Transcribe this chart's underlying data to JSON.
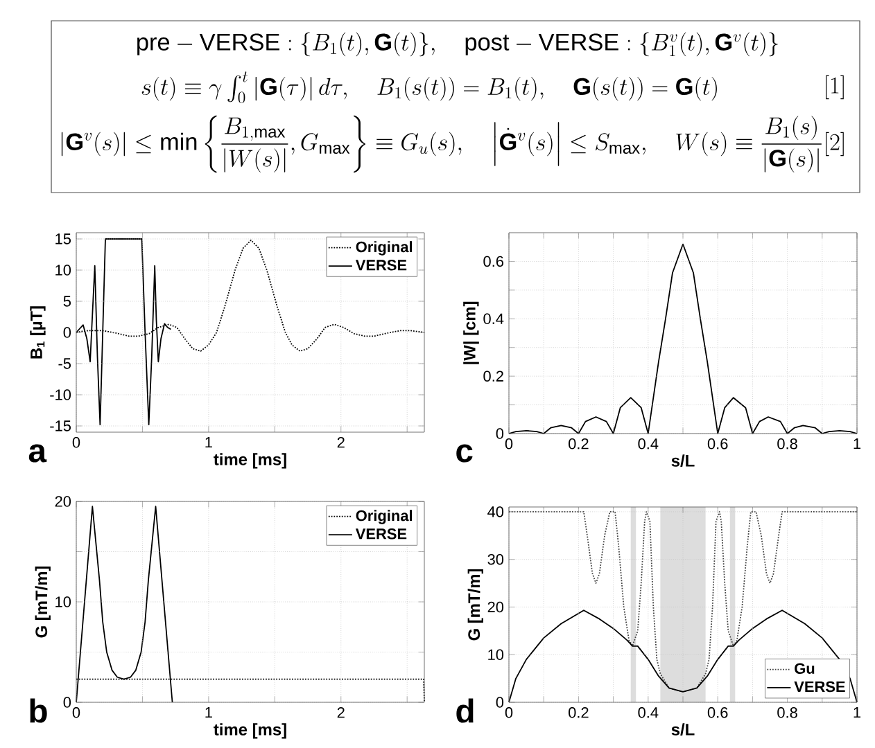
{
  "chart_data": [
    {
      "type": "other",
      "annotations": [
        "\\mathrm{pre-VERSE}:\\{B_1(t),\\mathbf{G}(t)\\},\\quad \\mathrm{post-VERSE}:\\{B_1^v(t),\\mathbf{G}^v(t)\\}",
        "s(t)\\equiv\\gamma\\int_0^t\\left|\\mathbf{G}(\\tau)\\right|d\\tau,\\quad B_1(s(t))=B_1(t),\\quad \\mathbf{G}(s(t))=\\mathbf{G}(t)",
        "\\left|\\mathbf{G}^v(s)\\right|\\le\\min\\left\\{\\frac{B_{1,\\max}}{\\left|W(s)\\right|},G_{\\max}\\right\\}\\equiv G_u(s),\\quad \\left|\\dot{\\mathbf{G}}^v(s)\\right|\\le S_{\\max},\\quad W(s)\\equiv\\frac{B_1(s)}{\\left|\\mathbf{G}(s)\\right|}",
        "[1]",
        "[2]"
      ]
    },
    {
      "type": "line",
      "xlabel": "time [ms]",
      "ylabel": "B$_{1}$ [µT]",
      "xlim": [
        0,
        2.63
      ],
      "ylim": [
        -16,
        16
      ],
      "xticks": [
        0,
        {
          "value": 0.5,
          "label": null
        },
        1,
        {
          "value": 1.5,
          "label": null
        },
        2,
        {
          "value": 2.5,
          "label": null
        }
      ],
      "yticks": [
        -15,
        -10,
        -5,
        0,
        5,
        10,
        15
      ],
      "grid": true,
      "legend": "top right",
      "annotations": [
        "a"
      ],
      "series": [
        {
          "name": "Original",
          "color": "#000000",
          "line_style": "dotted",
          "x": [
            0,
            0.05,
            0.1,
            0.2,
            0.3,
            0.4,
            0.47,
            0.55,
            0.62,
            0.7,
            0.76,
            0.82,
            0.88,
            0.94,
            1.0,
            1.06,
            1.12,
            1.2,
            1.26,
            1.32,
            1.38,
            1.44,
            1.52,
            1.58,
            1.63,
            1.69,
            1.75,
            1.82,
            1.88,
            1.95,
            2.02,
            2.1,
            2.18,
            2.25,
            2.35,
            2.45,
            2.52,
            2.6,
            2.63
          ],
          "values": [
            0,
            0.2,
            0.3,
            0.3,
            -0.1,
            -0.6,
            -0.6,
            -0.2,
            0.8,
            1.3,
            0.8,
            -1,
            -2.6,
            -3,
            -2,
            0,
            4,
            10,
            13.5,
            14.8,
            13.5,
            10,
            4,
            0,
            -2,
            -3,
            -2.6,
            -1,
            0.8,
            1.3,
            0.8,
            -0.2,
            -0.6,
            -0.6,
            -0.1,
            0.3,
            0.3,
            0.1,
            0
          ]
        },
        {
          "name": "VERSE",
          "color": "#000000",
          "line_style": "solid",
          "x": [
            0,
            0.052,
            0.08,
            0.105,
            0.12,
            0.14,
            0.16,
            0.18,
            0.2,
            0.22,
            0.495,
            0.52,
            0.548,
            0.57,
            0.593,
            0.605,
            0.62,
            0.64,
            0.667,
            0.69,
            0.715
          ],
          "values": [
            0,
            1.2,
            -1,
            -4.7,
            2,
            10.7,
            -4,
            -14.8,
            0,
            15,
            15,
            0,
            -14.8,
            -4,
            10.7,
            2,
            -4.7,
            -1,
            1.4,
            0.8,
            0.5
          ]
        }
      ]
    },
    {
      "type": "line",
      "xlabel": "time [ms]",
      "ylabel": "G [mT/m]",
      "xlim": [
        0,
        2.63
      ],
      "ylim": [
        0,
        20
      ],
      "xticks": [
        0,
        {
          "value": 0.5,
          "label": null
        },
        1,
        {
          "value": 1.5,
          "label": null
        },
        2,
        {
          "value": 2.5,
          "label": null
        }
      ],
      "yticks": [
        0,
        {
          "value": 5,
          "label": null
        },
        10,
        {
          "value": 15,
          "label": null
        },
        20
      ],
      "grid": true,
      "legend": "top right",
      "annotations": [
        "b"
      ],
      "series": [
        {
          "name": "Original",
          "color": "#000000",
          "line_style": "dotted",
          "x": [
            0,
            2.625,
            2.63
          ],
          "values": [
            2.3,
            2.3,
            0
          ]
        },
        {
          "name": "VERSE",
          "color": "#000000",
          "line_style": "solid",
          "x": [
            0,
            0.122,
            0.175,
            0.2,
            0.23,
            0.27,
            0.31,
            0.36,
            0.41,
            0.45,
            0.49,
            0.52,
            0.545,
            0.6,
            0.726
          ],
          "values": [
            0,
            19.5,
            12.2,
            8,
            5,
            3.2,
            2.5,
            2.3,
            2.5,
            3.2,
            5,
            8,
            12.2,
            19.5,
            0
          ]
        }
      ]
    },
    {
      "type": "line",
      "xlabel": "s/L",
      "ylabel": "|W| [cm]",
      "xlim": [
        0,
        1
      ],
      "ylim": [
        0,
        0.7
      ],
      "xticks": [
        0,
        {
          "value": 0.1,
          "label": null
        },
        0.2,
        {
          "value": 0.3,
          "label": null
        },
        0.4,
        {
          "value": 0.5,
          "label": null
        },
        0.6,
        {
          "value": 0.7,
          "label": null
        },
        0.8,
        {
          "value": 0.9,
          "label": null
        },
        1
      ],
      "yticks": [
        0,
        {
          "value": 0.1,
          "label": null
        },
        0.2,
        {
          "value": 0.3,
          "label": null
        },
        0.4,
        {
          "value": 0.5,
          "label": null
        },
        0.6
      ],
      "grid": true,
      "annotations": [
        "c"
      ],
      "series": [
        {
          "color": "#000000",
          "line_style": "solid",
          "x": [
            0,
            0.02,
            0.05,
            0.08,
            0.1,
            0.12,
            0.15,
            0.18,
            0.2,
            0.22,
            0.25,
            0.28,
            0.3,
            0.32,
            0.35,
            0.38,
            0.4,
            0.43,
            0.45,
            0.47,
            0.5,
            0.53,
            0.55,
            0.57,
            0.6,
            0.62,
            0.645,
            0.68,
            0.7,
            0.72,
            0.745,
            0.78,
            0.8,
            0.82,
            0.845,
            0.88,
            0.9,
            0.92,
            0.95,
            0.98,
            1
          ],
          "values": [
            0,
            0.007,
            0.01,
            0.007,
            0,
            0.02,
            0.028,
            0.02,
            0,
            0.042,
            0.058,
            0.042,
            0,
            0.09,
            0.125,
            0.09,
            0,
            0.25,
            0.4,
            0.56,
            0.66,
            0.56,
            0.4,
            0.25,
            0,
            0.09,
            0.125,
            0.09,
            0,
            0.042,
            0.058,
            0.042,
            0,
            0.02,
            0.028,
            0.02,
            0,
            0.007,
            0.01,
            0.007,
            0
          ]
        }
      ]
    },
    {
      "type": "line",
      "xlabel": "s/L",
      "ylabel": "G [mT/m]",
      "xlim": [
        0,
        1
      ],
      "ylim": [
        0,
        41
      ],
      "xticks": [
        0,
        {
          "value": 0.1,
          "label": null
        },
        0.2,
        {
          "value": 0.3,
          "label": null
        },
        0.4,
        {
          "value": 0.5,
          "label": null
        },
        0.6,
        {
          "value": 0.7,
          "label": null
        },
        0.8,
        {
          "value": 0.9,
          "label": null
        },
        1
      ],
      "yticks": [
        0,
        10,
        20,
        30,
        40
      ],
      "grid": true,
      "legend": "bottom right",
      "annotations": [
        "d"
      ],
      "bands": [
        {
          "axis": "x",
          "from": 0.35,
          "to": 0.365,
          "color": "#dddddd"
        },
        {
          "axis": "x",
          "from": 0.435,
          "to": 0.565,
          "color": "#dddddd"
        },
        {
          "axis": "x",
          "from": 0.635,
          "to": 0.65,
          "color": "#dddddd"
        }
      ],
      "series": [
        {
          "name": "Gu",
          "color": "#444444",
          "line_style": "dotted",
          "x": [
            0,
            0.215,
            0.225,
            0.24,
            0.25,
            0.26,
            0.275,
            0.29,
            0.305,
            0.315,
            0.33,
            0.345,
            0.355,
            0.37,
            0.38,
            0.39,
            0.395,
            0.405,
            0.415,
            0.425,
            0.435,
            0.46,
            0.5,
            0.54,
            0.565,
            0.575,
            0.585,
            0.595,
            0.605,
            0.61,
            0.62,
            0.63,
            0.645,
            0.655,
            0.67,
            0.685,
            0.695,
            0.71,
            0.725,
            0.74,
            0.75,
            0.76,
            0.775,
            0.785,
            1
          ],
          "values": [
            40,
            40,
            35,
            27,
            25,
            27,
            35,
            40,
            40,
            33,
            20,
            13,
            11.8,
            15,
            25,
            38,
            40,
            38,
            20,
            9,
            6,
            3,
            2.2,
            3,
            6,
            9,
            20,
            38,
            40,
            38,
            25,
            15,
            11.8,
            13,
            20,
            33,
            40,
            40,
            35,
            27,
            25,
            27,
            35,
            40,
            40
          ]
        },
        {
          "name": "VERSE",
          "color": "#000000",
          "line_style": "solid",
          "x": [
            0,
            0.02,
            0.05,
            0.1,
            0.15,
            0.215,
            0.26,
            0.3,
            0.34,
            0.355,
            0.37,
            0.4,
            0.43,
            0.46,
            0.5,
            0.54,
            0.57,
            0.6,
            0.63,
            0.645,
            0.66,
            0.7,
            0.74,
            0.785,
            0.85,
            0.9,
            0.95,
            0.98,
            1
          ],
          "values": [
            0,
            5,
            9,
            13.5,
            16.5,
            19.3,
            17.5,
            15.5,
            13,
            11.8,
            11.8,
            9,
            5.5,
            3,
            2.2,
            3,
            5.5,
            9,
            11.8,
            11.8,
            13,
            15.5,
            17.5,
            19.3,
            16.5,
            13.5,
            9,
            5,
            0
          ]
        }
      ]
    }
  ]
}
